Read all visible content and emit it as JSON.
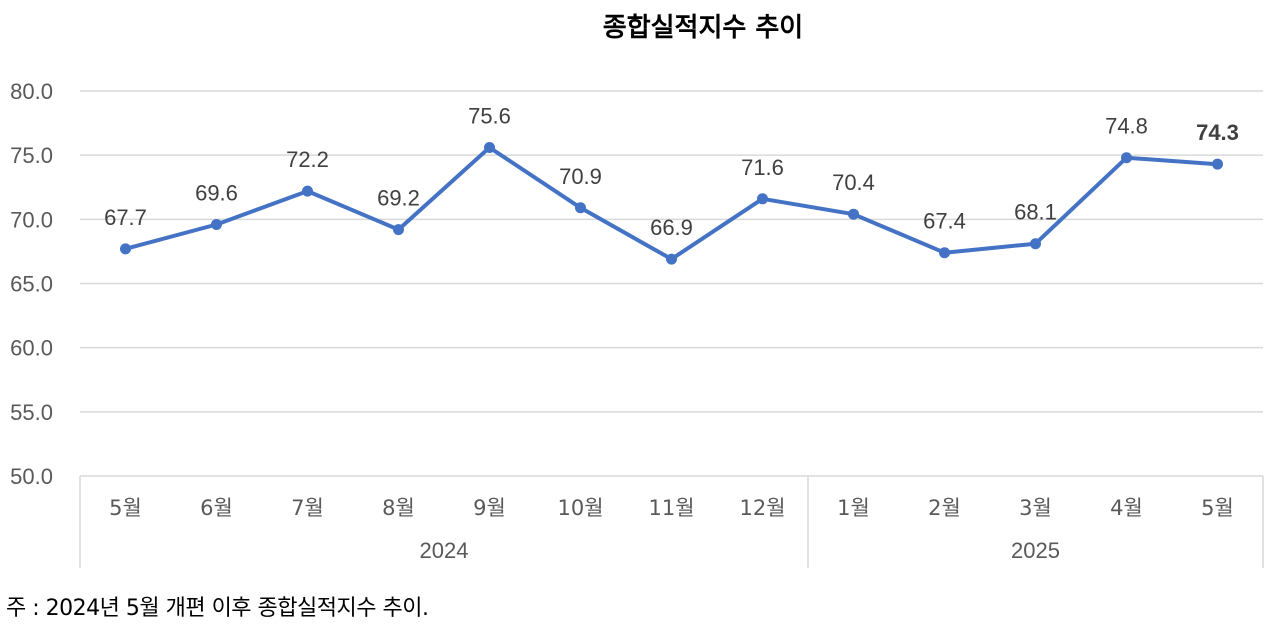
{
  "chart_data": {
    "type": "line",
    "title": "종합실적지수  추이",
    "categories": [
      "5월",
      "6월",
      "7월",
      "8월",
      "9월",
      "10월",
      "11월",
      "12월",
      "1월",
      "2월",
      "3월",
      "4월",
      "5월"
    ],
    "groups": [
      {
        "label": "2024",
        "categories": [
          "5월",
          "6월",
          "7월",
          "8월",
          "9월",
          "10월",
          "11월",
          "12월"
        ]
      },
      {
        "label": "2025",
        "categories": [
          "1월",
          "2월",
          "3월",
          "4월",
          "5월"
        ]
      }
    ],
    "values": [
      67.7,
      69.6,
      72.2,
      69.2,
      75.6,
      70.9,
      66.9,
      71.6,
      70.4,
      67.4,
      68.1,
      74.8,
      74.3
    ],
    "value_labels": [
      "67.7",
      "69.6",
      "72.2",
      "69.2",
      "75.6",
      "70.9",
      "66.9",
      "71.6",
      "70.4",
      "67.4",
      "68.1",
      "74.8",
      "74.3"
    ],
    "highlight_last_label": true,
    "ylim": [
      50,
      80
    ],
    "yticks": [
      "50.0",
      "55.0",
      "60.0",
      "65.0",
      "70.0",
      "75.0",
      "80.0"
    ],
    "grid": true,
    "legend": "none",
    "line_color": "#4472C4",
    "grid_color": "#D9D9D9",
    "xlabel": "",
    "ylabel": ""
  },
  "footnote": "주 : 2024년 5월 개편 이후 종합실적지수 추이."
}
